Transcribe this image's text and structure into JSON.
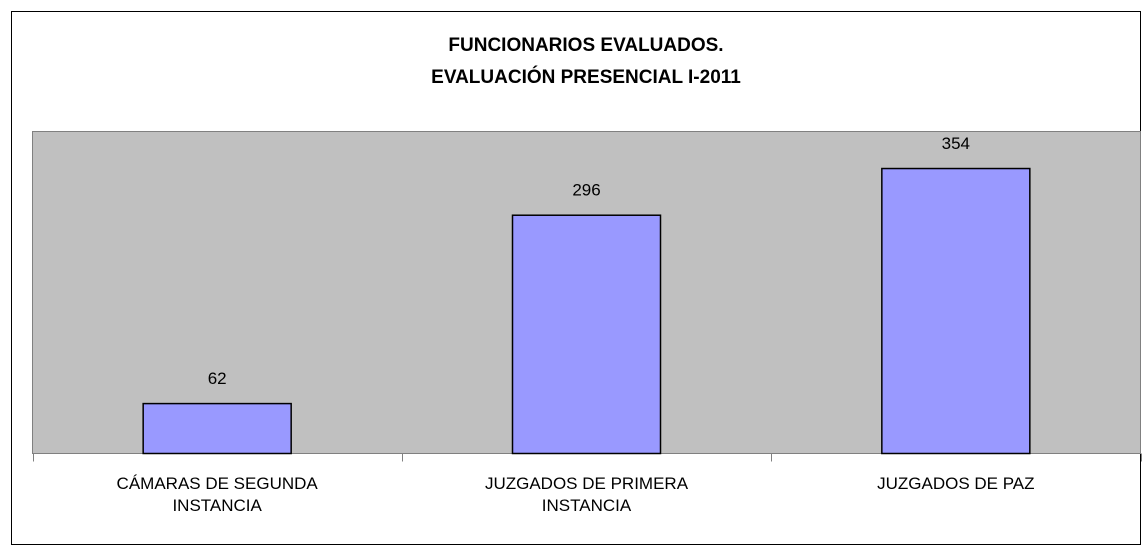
{
  "chart_data": {
    "type": "bar",
    "title": [
      "FUNCIONARIOS EVALUADOS.",
      "EVALUACIÓN PRESENCIAL I-2011"
    ],
    "categories": [
      "CÁMARAS DE SEGUNDA INSTANCIA",
      "JUZGADOS DE PRIMERA INSTANCIA",
      "JUZGADOS DE PAZ"
    ],
    "values": [
      62,
      296,
      354
    ],
    "color": "#9999ff",
    "ylim": [
      0,
      400
    ]
  }
}
